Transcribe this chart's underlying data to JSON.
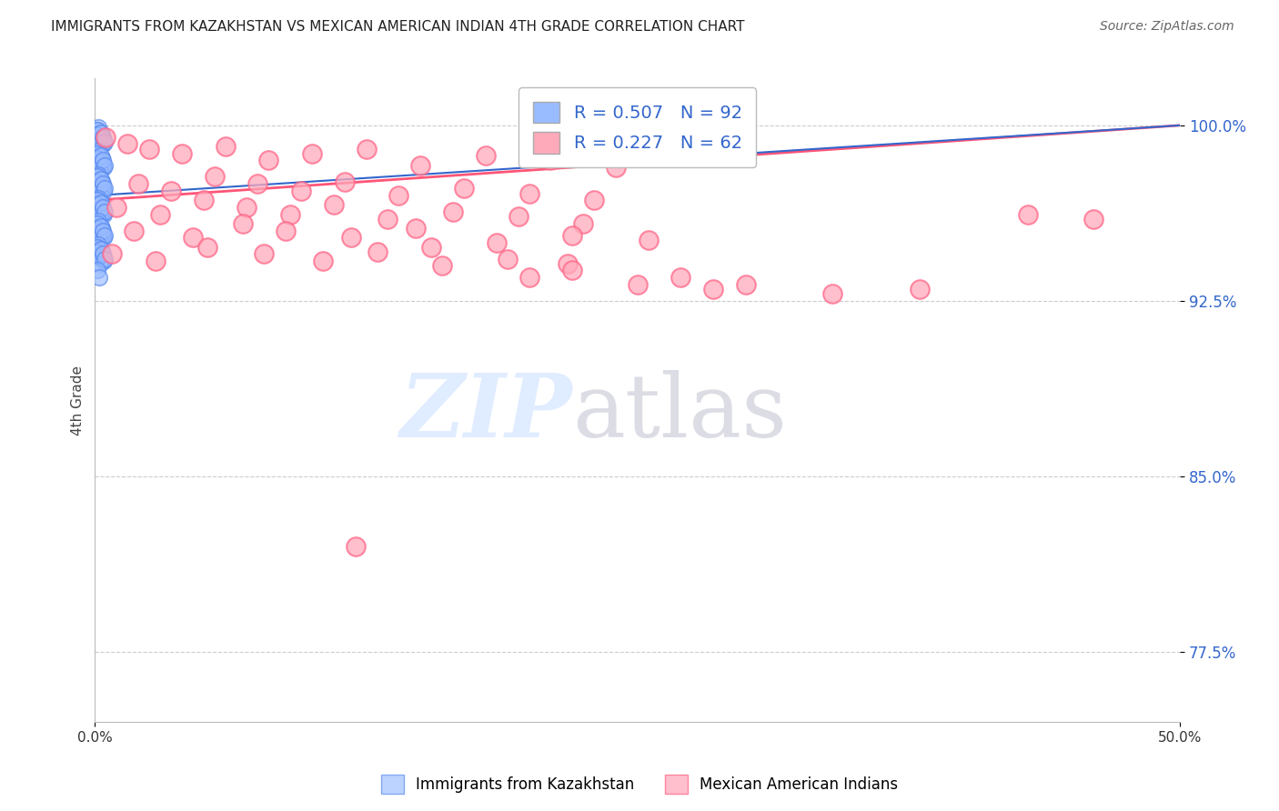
{
  "title": "IMMIGRANTS FROM KAZAKHSTAN VS MEXICAN AMERICAN INDIAN 4TH GRADE CORRELATION CHART",
  "source": "Source: ZipAtlas.com",
  "ylabel": "4th Grade",
  "yticks": [
    77.5,
    85.0,
    92.5,
    100.0
  ],
  "ytick_labels": [
    "77.5%",
    "85.0%",
    "92.5%",
    "100.0%"
  ],
  "xmin": 0.0,
  "xmax": 50.0,
  "ymin": 74.5,
  "ymax": 102.0,
  "kaz_R": 0.507,
  "kaz_N": 92,
  "mex_R": 0.227,
  "mex_N": 62,
  "kaz_color_face": "#99bbff",
  "kaz_color_edge": "#5588ee",
  "mex_color_face": "#ffaabb",
  "mex_color_edge": "#ff6688",
  "kaz_line_color": "#3366cc",
  "mex_line_color": "#ff5577",
  "legend_label_kaz": "Immigrants from Kazakhstan",
  "legend_label_mex": "Mexican American Indians",
  "watermark_zip_color": "#cce0ff",
  "watermark_atlas_color": "#bbbbdd",
  "background_color": "#ffffff",
  "title_fontsize": 11,
  "source_fontsize": 10,
  "ytick_color": "#3366cc",
  "ylabel_color": "#444444",
  "kaz_trend_y0": 97.0,
  "kaz_trend_y1": 100.0,
  "mex_trend_y0": 96.8,
  "mex_trend_y1": 100.0,
  "kaz_points_x": [
    0.1,
    0.2,
    0.3,
    0.15,
    0.25,
    0.05,
    0.4,
    0.35,
    0.12,
    0.22,
    0.08,
    0.18,
    0.28,
    0.38,
    0.45,
    0.1,
    0.2,
    0.3,
    0.15,
    0.25,
    0.05,
    0.4,
    0.35,
    0.12,
    0.22,
    0.08,
    0.18,
    0.28,
    0.38,
    0.45,
    0.1,
    0.2,
    0.3,
    0.15,
    0.25,
    0.05,
    0.4,
    0.35,
    0.12,
    0.22,
    0.08,
    0.18,
    0.28,
    0.38,
    0.45,
    0.1,
    0.2,
    0.3,
    0.15,
    0.25,
    0.05,
    0.4,
    0.35,
    0.12,
    0.22,
    0.08,
    0.18,
    0.28,
    0.38,
    0.45,
    0.1,
    0.2,
    0.3,
    0.15,
    0.25,
    0.05,
    0.4,
    0.35,
    0.12,
    0.22,
    0.08,
    0.18,
    0.28,
    0.38,
    0.45,
    0.1,
    0.2,
    0.3,
    0.15,
    0.25,
    0.05,
    0.4,
    0.35,
    0.12,
    0.22,
    0.08,
    0.18,
    0.28,
    0.38,
    0.45,
    0.1,
    0.2
  ],
  "kaz_points_y": [
    99.8,
    99.5,
    99.6,
    99.9,
    99.7,
    99.4,
    99.2,
    99.3,
    99.8,
    99.1,
    99.6,
    99.4,
    99.7,
    99.5,
    99.3,
    98.8,
    98.5,
    98.6,
    98.9,
    98.7,
    98.4,
    98.2,
    98.3,
    98.8,
    98.1,
    98.6,
    98.4,
    98.7,
    98.5,
    98.3,
    97.8,
    97.5,
    97.6,
    97.9,
    97.7,
    97.4,
    97.2,
    97.3,
    97.8,
    97.1,
    97.6,
    97.4,
    97.7,
    97.5,
    97.3,
    96.8,
    96.5,
    96.6,
    96.9,
    96.7,
    96.4,
    96.2,
    96.3,
    96.8,
    96.1,
    96.6,
    96.4,
    96.7,
    96.5,
    96.3,
    95.8,
    95.5,
    95.6,
    95.9,
    95.7,
    95.4,
    95.2,
    95.3,
    95.8,
    95.1,
    95.6,
    95.4,
    95.7,
    95.5,
    95.3,
    94.8,
    94.5,
    94.6,
    94.9,
    94.7,
    94.4,
    94.2,
    94.3,
    94.8,
    94.1,
    94.6,
    94.4,
    94.7,
    94.5,
    94.3,
    93.8,
    93.5
  ],
  "mex_points_x": [
    0.5,
    1.5,
    2.5,
    4.0,
    6.0,
    8.0,
    10.0,
    12.5,
    15.0,
    18.0,
    21.0,
    24.0,
    2.0,
    3.5,
    5.5,
    7.5,
    9.5,
    11.5,
    14.0,
    17.0,
    20.0,
    23.0,
    1.0,
    3.0,
    5.0,
    7.0,
    9.0,
    11.0,
    13.5,
    16.5,
    19.5,
    22.5,
    1.8,
    4.5,
    6.8,
    8.8,
    11.8,
    14.8,
    18.5,
    22.0,
    25.5,
    0.8,
    2.8,
    5.2,
    7.8,
    10.5,
    13.0,
    16.0,
    19.0,
    21.8,
    27.0,
    30.0,
    34.0,
    38.0,
    43.0,
    46.0,
    20.0,
    22.0,
    25.0,
    28.5,
    15.5,
    12.0
  ],
  "mex_points_y": [
    99.5,
    99.2,
    99.0,
    98.8,
    99.1,
    98.5,
    98.8,
    99.0,
    98.3,
    98.7,
    98.5,
    98.2,
    97.5,
    97.2,
    97.8,
    97.5,
    97.2,
    97.6,
    97.0,
    97.3,
    97.1,
    96.8,
    96.5,
    96.2,
    96.8,
    96.5,
    96.2,
    96.6,
    96.0,
    96.3,
    96.1,
    95.8,
    95.5,
    95.2,
    95.8,
    95.5,
    95.2,
    95.6,
    95.0,
    95.3,
    95.1,
    94.5,
    94.2,
    94.8,
    94.5,
    94.2,
    94.6,
    94.0,
    94.3,
    94.1,
    93.5,
    93.2,
    92.8,
    93.0,
    96.2,
    96.0,
    93.5,
    93.8,
    93.2,
    93.0,
    94.8,
    82.0
  ]
}
